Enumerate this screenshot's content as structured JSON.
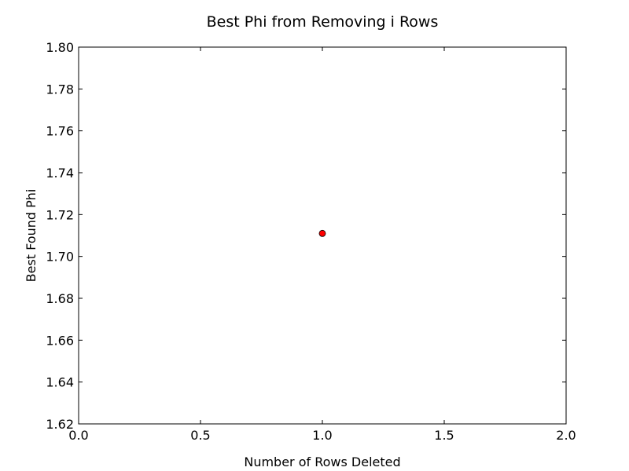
{
  "chart_data": {
    "type": "scatter",
    "title": "Best Phi from Removing i Rows",
    "xlabel": "Number of Rows Deleted",
    "ylabel": "Best Found Phi",
    "xlim": [
      0.0,
      2.0
    ],
    "ylim": [
      1.62,
      1.8
    ],
    "xticks": [
      "0.0",
      "0.5",
      "1.0",
      "1.5",
      "2.0"
    ],
    "yticks": [
      "1.62",
      "1.64",
      "1.66",
      "1.68",
      "1.70",
      "1.72",
      "1.74",
      "1.76",
      "1.78",
      "1.80"
    ],
    "grid": false,
    "points": [
      {
        "x": 1.0,
        "y": 1.711
      }
    ],
    "marker_color": "#ff0000",
    "marker_edge_color": "#000000"
  }
}
